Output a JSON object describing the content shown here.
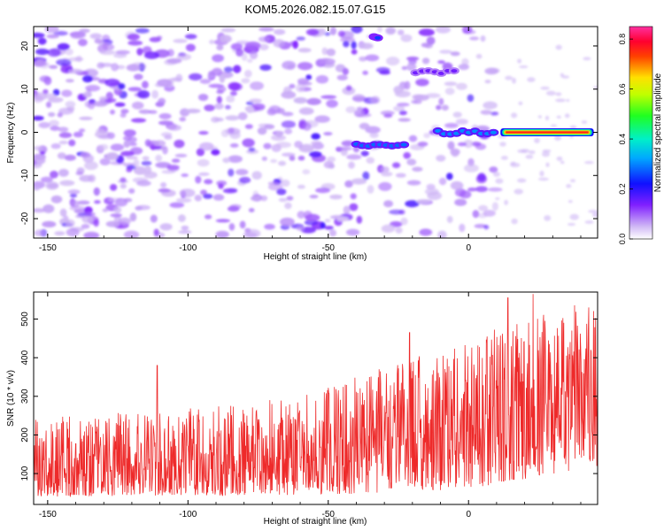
{
  "title": "KOM5.2026.082.15.07.G15",
  "colors": {
    "snr_line": "#ee2a2a",
    "spectro_base": "#7a1fe0",
    "axis": "#000000",
    "background": "#ffffff"
  },
  "chart_data": [
    {
      "type": "heatmap",
      "title": "KOM5.2026.082.15.07.G15",
      "xlabel": "Height of straight line (km)",
      "ylabel": "Frequency (Hz)",
      "xlim": [
        -155,
        46
      ],
      "ylim": [
        -24.5,
        24.5
      ],
      "xticks": [
        -150,
        -100,
        -50,
        0
      ],
      "yticks": [
        -20,
        -10,
        0,
        10,
        20
      ],
      "colorbar": {
        "label": "Normalized spectral amplitude",
        "range": [
          0.0,
          0.85
        ],
        "ticks": [
          0.0,
          0.2,
          0.4,
          0.6,
          0.8
        ],
        "colormap": "rainbow (white, purple, blue, cyan, green, yellow, red, magenta)"
      },
      "features": [
        {
          "name": "noise background",
          "x_range": [
            -155,
            10
          ],
          "freq_range": [
            -24,
            24
          ],
          "amplitude": "0.05-0.15"
        },
        {
          "name": "main trace",
          "x_range": [
            12,
            44
          ],
          "freq": 0,
          "amplitude": 0.85
        },
        {
          "name": "trace segment",
          "x_range": [
            -12,
            10
          ],
          "freq": 0,
          "amplitude": 0.3
        },
        {
          "name": "trace segment",
          "x_range": [
            -41,
            -22
          ],
          "freq": -3,
          "amplitude": 0.28
        },
        {
          "name": "trace segment",
          "x_range": [
            -20,
            -4
          ],
          "freq": 14,
          "amplitude": 0.15
        },
        {
          "name": "trace segment",
          "x_range": [
            -34,
            -32
          ],
          "freq": 22,
          "amplitude": 0.25
        }
      ]
    },
    {
      "type": "line",
      "xlabel": "Height of straight line (km)",
      "ylabel": "SNR (10 * v/v)",
      "xlim": [
        -155,
        46
      ],
      "ylim": [
        20,
        570
      ],
      "xticks": [
        -150,
        -100,
        -50,
        0
      ],
      "yticks": [
        100,
        200,
        300,
        400,
        500
      ],
      "series": [
        {
          "name": "SNR",
          "color": "#ee2a2a",
          "x_start": -155,
          "x_end": 46,
          "samples": 1400,
          "min_envelope": [
            [
              -155,
              40
            ],
            [
              -50,
              45
            ],
            [
              0,
              60
            ],
            [
              46,
              120
            ]
          ],
          "max_envelope": [
            [
              -155,
              250
            ],
            [
              -110,
              260
            ],
            [
              -60,
              300
            ],
            [
              -20,
              400
            ],
            [
              20,
              500
            ],
            [
              46,
              560
            ]
          ],
          "peaks": [
            [
              -111,
              380
            ],
            [
              -21,
              465
            ],
            [
              14,
              555
            ],
            [
              23,
              565
            ]
          ]
        }
      ]
    }
  ]
}
